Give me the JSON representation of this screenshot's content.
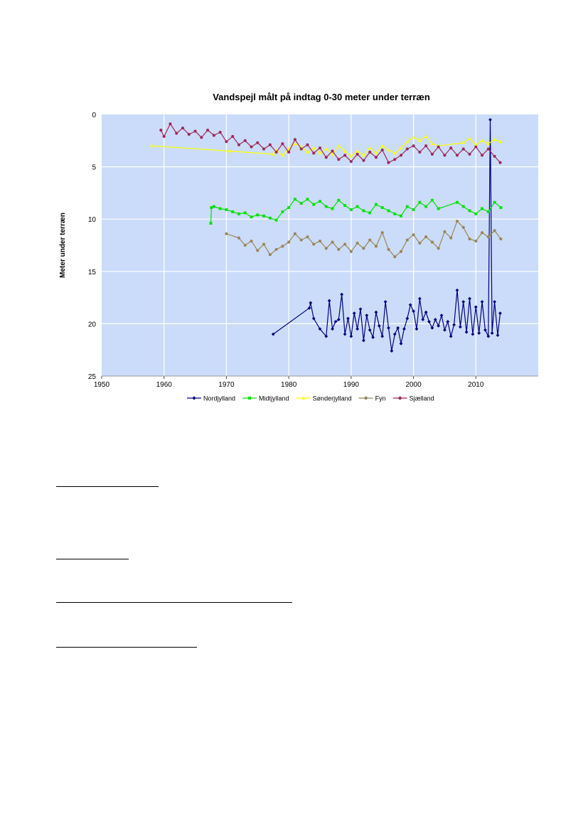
{
  "chart_data": {
    "type": "line",
    "title": "Vandspejl målt på indtag 0-30 meter under terræn",
    "xlabel": "",
    "ylabel": "Meter under terræn",
    "xlim": [
      1950,
      2020
    ],
    "ylim": [
      0,
      25
    ],
    "y_reversed": true,
    "xticks": [
      1950,
      1960,
      1970,
      1980,
      1990,
      2000,
      2010
    ],
    "yticks": [
      0,
      5,
      10,
      15,
      20,
      25
    ],
    "grid": true,
    "legend_position": "bottom",
    "background_color": "#cadcf9",
    "series": [
      {
        "name": "Nordjylland",
        "color": "#00007c",
        "marker": "diamond",
        "points": [
          [
            1977.5,
            21.0
          ],
          [
            1983.3,
            18.5
          ],
          [
            1983.5,
            18.0
          ],
          [
            1984.0,
            19.5
          ],
          [
            1985.0,
            20.5
          ],
          [
            1986.0,
            21.2
          ],
          [
            1986.5,
            17.8
          ],
          [
            1987.0,
            20.5
          ],
          [
            1987.5,
            19.8
          ],
          [
            1988.0,
            19.6
          ],
          [
            1988.5,
            17.2
          ],
          [
            1989.0,
            21.0
          ],
          [
            1989.5,
            19.5
          ],
          [
            1990.0,
            21.2
          ],
          [
            1990.5,
            19.0
          ],
          [
            1991.0,
            20.5
          ],
          [
            1991.5,
            18.6
          ],
          [
            1992.0,
            21.6
          ],
          [
            1992.5,
            19.2
          ],
          [
            1993.0,
            20.6
          ],
          [
            1993.5,
            21.3
          ],
          [
            1994.0,
            18.9
          ],
          [
            1994.5,
            20.2
          ],
          [
            1995.0,
            21.2
          ],
          [
            1995.5,
            17.9
          ],
          [
            1996.0,
            20.4
          ],
          [
            1996.5,
            22.6
          ],
          [
            1997.0,
            21.0
          ],
          [
            1997.5,
            20.4
          ],
          [
            1998.0,
            21.9
          ],
          [
            1998.5,
            20.5
          ],
          [
            1999.0,
            19.5
          ],
          [
            1999.5,
            18.2
          ],
          [
            2000.0,
            18.8
          ],
          [
            2000.5,
            20.5
          ],
          [
            2001.0,
            17.6
          ],
          [
            2001.5,
            19.6
          ],
          [
            2002.0,
            18.9
          ],
          [
            2002.5,
            19.8
          ],
          [
            2003.0,
            20.4
          ],
          [
            2003.5,
            19.6
          ],
          [
            2004.0,
            20.2
          ],
          [
            2004.5,
            19.2
          ],
          [
            2005.0,
            20.6
          ],
          [
            2005.5,
            19.8
          ],
          [
            2006.0,
            21.2
          ],
          [
            2006.5,
            20.1
          ],
          [
            2007.0,
            16.8
          ],
          [
            2007.5,
            20.3
          ],
          [
            2008.0,
            17.9
          ],
          [
            2008.5,
            20.8
          ],
          [
            2009.0,
            17.6
          ],
          [
            2009.5,
            21.0
          ],
          [
            2010.0,
            18.4
          ],
          [
            2010.5,
            20.9
          ],
          [
            2011.0,
            17.9
          ],
          [
            2011.5,
            20.6
          ],
          [
            2012.0,
            21.2
          ],
          [
            2012.3,
            0.5
          ],
          [
            2012.6,
            20.9
          ],
          [
            2013.0,
            17.9
          ],
          [
            2013.5,
            21.1
          ],
          [
            2013.9,
            19.0
          ]
        ]
      },
      {
        "name": "Midtjylland",
        "color": "#00e000",
        "marker": "square",
        "points": [
          [
            1967.5,
            10.4
          ],
          [
            1967.6,
            8.9
          ],
          [
            1968.0,
            8.8
          ],
          [
            1969.0,
            9.0
          ],
          [
            1970.0,
            9.1
          ],
          [
            1971.0,
            9.3
          ],
          [
            1972.0,
            9.5
          ],
          [
            1973.0,
            9.4
          ],
          [
            1974.0,
            9.8
          ],
          [
            1975.0,
            9.6
          ],
          [
            1976.0,
            9.7
          ],
          [
            1977.0,
            9.9
          ],
          [
            1978.0,
            10.1
          ],
          [
            1979.0,
            9.3
          ],
          [
            1980.0,
            8.9
          ],
          [
            1981.0,
            8.1
          ],
          [
            1982.0,
            8.5
          ],
          [
            1983.0,
            8.1
          ],
          [
            1984.0,
            8.6
          ],
          [
            1985.0,
            8.3
          ],
          [
            1986.0,
            8.8
          ],
          [
            1987.0,
            9.0
          ],
          [
            1988.0,
            8.2
          ],
          [
            1989.0,
            8.7
          ],
          [
            1990.0,
            9.1
          ],
          [
            1991.0,
            8.8
          ],
          [
            1992.0,
            9.2
          ],
          [
            1993.0,
            9.4
          ],
          [
            1994.0,
            8.6
          ],
          [
            1995.0,
            8.9
          ],
          [
            1996.0,
            9.2
          ],
          [
            1997.0,
            9.5
          ],
          [
            1998.0,
            9.7
          ],
          [
            1999.0,
            8.8
          ],
          [
            2000.0,
            9.1
          ],
          [
            2001.0,
            8.4
          ],
          [
            2002.0,
            8.8
          ],
          [
            2003.0,
            8.2
          ],
          [
            2004.0,
            9.0
          ],
          [
            2007.0,
            8.4
          ],
          [
            2008.0,
            8.8
          ],
          [
            2009.0,
            9.2
          ],
          [
            2010.0,
            9.5
          ],
          [
            2011.0,
            9.0
          ],
          [
            2012.0,
            9.3
          ],
          [
            2013.0,
            8.4
          ],
          [
            2014.0,
            8.9
          ]
        ]
      },
      {
        "name": "Sønderjylland",
        "color": "#ffff00",
        "marker": "triangle",
        "points": [
          [
            1958.0,
            3.0
          ],
          [
            1970.5,
            3.5
          ],
          [
            1977.5,
            3.8
          ],
          [
            1978.0,
            3.4
          ],
          [
            1979.0,
            3.9
          ],
          [
            1980.0,
            3.3
          ],
          [
            1981.0,
            2.8
          ],
          [
            1982.0,
            3.1
          ],
          [
            1983.0,
            3.6
          ],
          [
            1984.0,
            3.2
          ],
          [
            1985.0,
            3.7
          ],
          [
            1986.0,
            3.3
          ],
          [
            1987.0,
            3.8
          ],
          [
            1988.0,
            3.0
          ],
          [
            1989.0,
            3.5
          ],
          [
            1990.0,
            4.0
          ],
          [
            1991.0,
            3.5
          ],
          [
            1992.0,
            3.9
          ],
          [
            1993.0,
            3.2
          ],
          [
            1994.0,
            3.7
          ],
          [
            1995.0,
            3.0
          ],
          [
            1996.0,
            3.4
          ],
          [
            1997.0,
            3.7
          ],
          [
            1998.0,
            3.2
          ],
          [
            1999.0,
            2.6
          ],
          [
            2000.0,
            2.2
          ],
          [
            2001.0,
            2.5
          ],
          [
            2002.0,
            2.1
          ],
          [
            2003.0,
            2.8
          ],
          [
            2004.0,
            3.0
          ],
          [
            2008.0,
            2.7
          ],
          [
            2009.0,
            2.3
          ],
          [
            2010.0,
            2.9
          ],
          [
            2011.0,
            2.5
          ],
          [
            2012.0,
            2.8
          ],
          [
            2013.0,
            2.4
          ],
          [
            2014.0,
            2.6
          ]
        ]
      },
      {
        "name": "Fyn",
        "color": "#9a8557",
        "marker": "dot",
        "points": [
          [
            1970.0,
            11.4
          ],
          [
            1972.0,
            11.8
          ],
          [
            1973.0,
            12.5
          ],
          [
            1974.0,
            12.1
          ],
          [
            1975.0,
            13.0
          ],
          [
            1976.0,
            12.4
          ],
          [
            1977.0,
            13.4
          ],
          [
            1978.0,
            12.9
          ],
          [
            1979.0,
            12.6
          ],
          [
            1980.0,
            12.2
          ],
          [
            1981.0,
            11.4
          ],
          [
            1982.0,
            12.0
          ],
          [
            1983.0,
            11.7
          ],
          [
            1984.0,
            12.4
          ],
          [
            1985.0,
            12.1
          ],
          [
            1986.0,
            12.8
          ],
          [
            1987.0,
            12.2
          ],
          [
            1988.0,
            12.9
          ],
          [
            1989.0,
            12.4
          ],
          [
            1990.0,
            13.1
          ],
          [
            1991.0,
            12.3
          ],
          [
            1992.0,
            12.8
          ],
          [
            1993.0,
            12.0
          ],
          [
            1994.0,
            12.6
          ],
          [
            1995.0,
            11.3
          ],
          [
            1996.0,
            12.9
          ],
          [
            1997.0,
            13.6
          ],
          [
            1998.0,
            13.1
          ],
          [
            1999.0,
            12.0
          ],
          [
            2000.0,
            11.5
          ],
          [
            2001.0,
            12.3
          ],
          [
            2002.0,
            11.7
          ],
          [
            2003.0,
            12.2
          ],
          [
            2004.0,
            12.8
          ],
          [
            2005.0,
            11.2
          ],
          [
            2006.0,
            11.8
          ],
          [
            2007.0,
            10.2
          ],
          [
            2008.0,
            10.8
          ],
          [
            2009.0,
            11.9
          ],
          [
            2010.0,
            12.1
          ],
          [
            2011.0,
            11.3
          ],
          [
            2012.0,
            11.7
          ],
          [
            2013.0,
            11.1
          ],
          [
            2014.0,
            11.9
          ]
        ]
      },
      {
        "name": "Sjælland",
        "color": "#9c2a5a",
        "marker": "dot",
        "points": [
          [
            1959.5,
            1.5
          ],
          [
            1960.0,
            2.1
          ],
          [
            1961.0,
            0.9
          ],
          [
            1962.0,
            1.8
          ],
          [
            1963.0,
            1.3
          ],
          [
            1964.0,
            1.9
          ],
          [
            1965.0,
            1.6
          ],
          [
            1966.0,
            2.2
          ],
          [
            1967.0,
            1.5
          ],
          [
            1968.0,
            2.0
          ],
          [
            1969.0,
            1.7
          ],
          [
            1970.0,
            2.6
          ],
          [
            1971.0,
            2.1
          ],
          [
            1972.0,
            2.9
          ],
          [
            1973.0,
            2.5
          ],
          [
            1974.0,
            3.1
          ],
          [
            1975.0,
            2.7
          ],
          [
            1976.0,
            3.3
          ],
          [
            1977.0,
            2.9
          ],
          [
            1978.0,
            3.6
          ],
          [
            1979.0,
            2.8
          ],
          [
            1980.0,
            3.6
          ],
          [
            1981.0,
            2.4
          ],
          [
            1982.0,
            3.3
          ],
          [
            1983.0,
            2.9
          ],
          [
            1984.0,
            3.7
          ],
          [
            1985.0,
            3.2
          ],
          [
            1986.0,
            4.1
          ],
          [
            1987.0,
            3.5
          ],
          [
            1988.0,
            4.3
          ],
          [
            1989.0,
            3.9
          ],
          [
            1990.0,
            4.5
          ],
          [
            1991.0,
            3.8
          ],
          [
            1992.0,
            4.4
          ],
          [
            1993.0,
            3.6
          ],
          [
            1994.0,
            4.1
          ],
          [
            1995.0,
            3.4
          ],
          [
            1996.0,
            4.6
          ],
          [
            1997.0,
            4.3
          ],
          [
            1998.0,
            3.9
          ],
          [
            1999.0,
            3.3
          ],
          [
            2000.0,
            3.0
          ],
          [
            2001.0,
            3.6
          ],
          [
            2002.0,
            3.0
          ],
          [
            2003.0,
            3.8
          ],
          [
            2004.0,
            3.1
          ],
          [
            2005.0,
            3.9
          ],
          [
            2006.0,
            3.2
          ],
          [
            2007.0,
            3.9
          ],
          [
            2008.0,
            3.3
          ],
          [
            2009.0,
            3.8
          ],
          [
            2010.0,
            3.1
          ],
          [
            2011.0,
            3.9
          ],
          [
            2012.0,
            3.3
          ],
          [
            2013.0,
            4.0
          ],
          [
            2013.9,
            4.6
          ]
        ]
      }
    ]
  }
}
